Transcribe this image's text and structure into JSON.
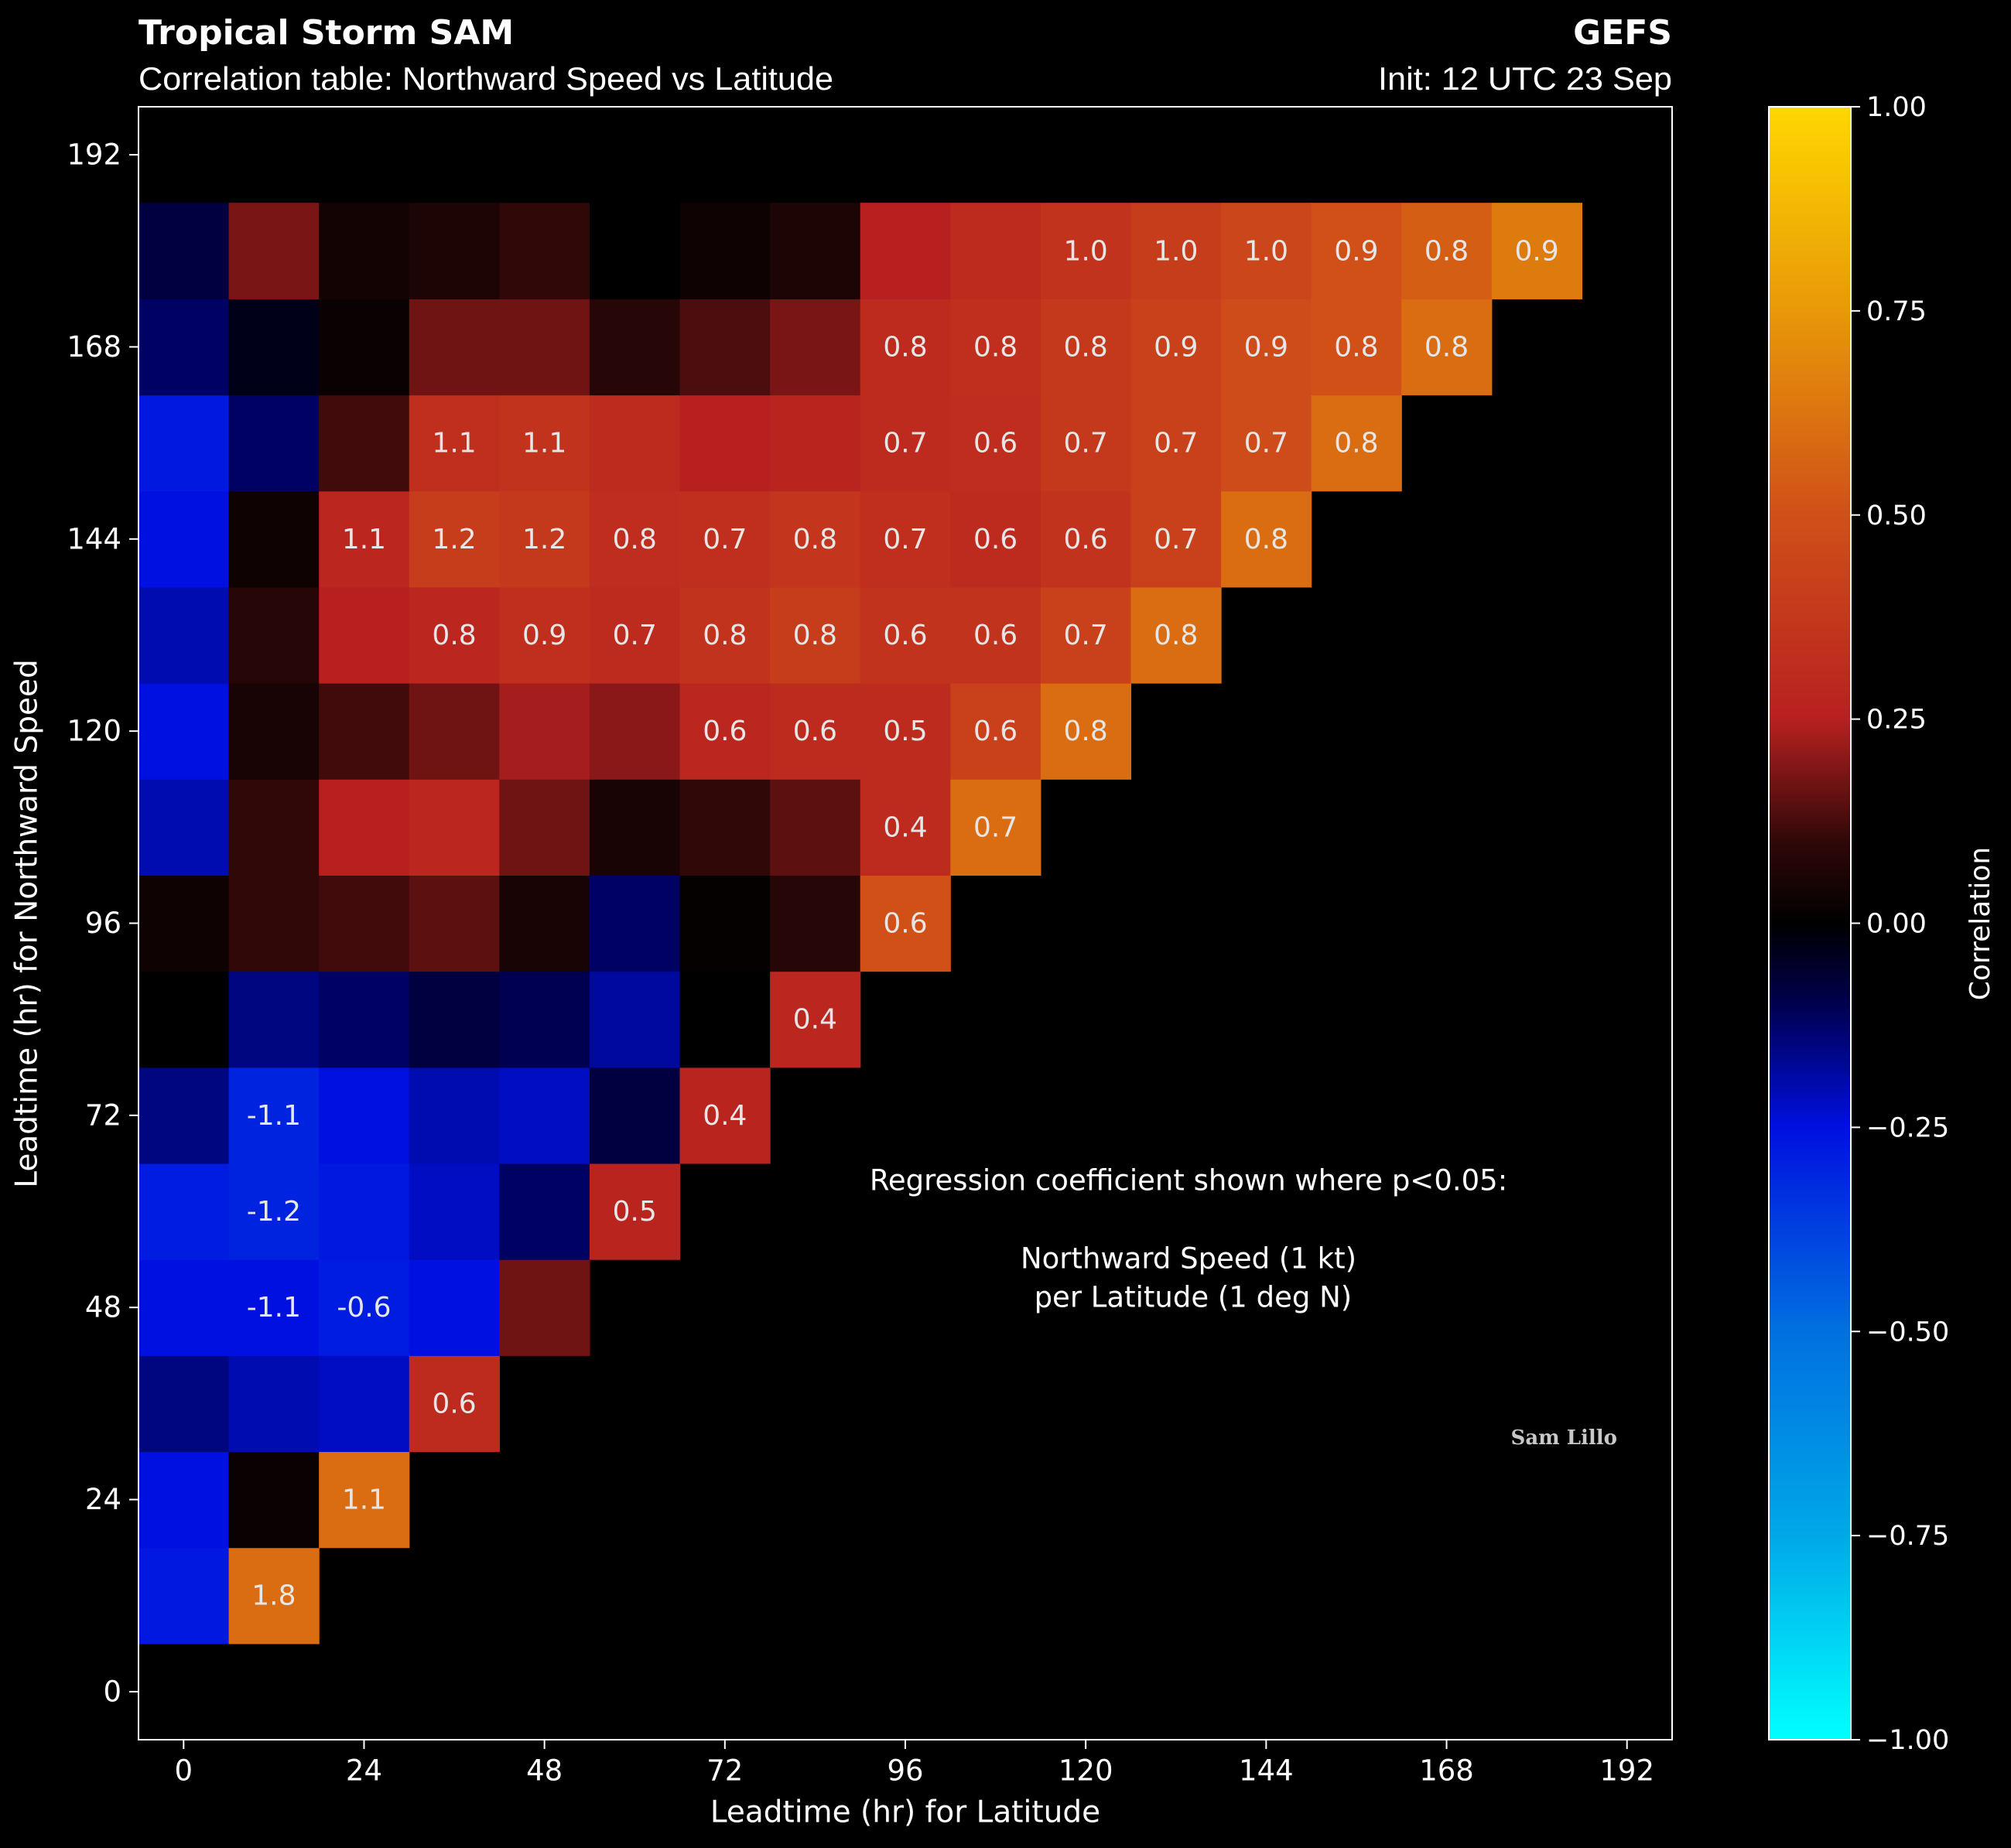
{
  "chart_data": {
    "type": "heatmap",
    "title": "Tropical Storm SAM",
    "subtitle": "Correlation table: Northward Speed vs Latitude",
    "model": "GEFS",
    "init": "Init: 12 UTC 23 Sep",
    "xlabel": "Leadtime (hr) for Latitude",
    "ylabel": "Leadtime (hr) for Northward Speed",
    "colorbar_label": "Correlation",
    "annotation": [
      "Regression coefficient shown where p<0.05:",
      "Northward Speed (1 kt)",
      " per Latitude (1 deg N)"
    ],
    "credit": "Sam Lillo",
    "x": [
      0,
      12,
      24,
      36,
      48,
      60,
      72,
      84,
      96,
      108,
      120,
      132,
      144,
      156,
      168,
      180
    ],
    "y": [
      12,
      24,
      36,
      48,
      60,
      72,
      84,
      96,
      108,
      120,
      132,
      144,
      156,
      168,
      180
    ],
    "z": [
      [
        -0.27,
        0.6,
        null,
        null,
        null,
        null,
        null,
        null,
        null,
        null,
        null,
        null,
        null,
        null,
        null,
        null
      ],
      [
        -0.25,
        0.02,
        0.6,
        null,
        null,
        null,
        null,
        null,
        null,
        null,
        null,
        null,
        null,
        null,
        null,
        null
      ],
      [
        -0.15,
        -0.2,
        -0.22,
        0.3,
        null,
        null,
        null,
        null,
        null,
        null,
        null,
        null,
        null,
        null,
        null,
        null
      ],
      [
        -0.25,
        -0.25,
        -0.28,
        -0.25,
        0.17,
        null,
        null,
        null,
        null,
        null,
        null,
        null,
        null,
        null,
        null,
        null
      ],
      [
        -0.28,
        -0.3,
        -0.27,
        -0.22,
        -0.12,
        0.27,
        null,
        null,
        null,
        null,
        null,
        null,
        null,
        null,
        null,
        null
      ],
      [
        -0.15,
        -0.3,
        -0.25,
        -0.2,
        -0.22,
        -0.08,
        0.27,
        null,
        null,
        null,
        null,
        null,
        null,
        null,
        null,
        null
      ],
      [
        0.0,
        -0.15,
        -0.12,
        -0.08,
        -0.1,
        -0.18,
        0.0,
        0.28,
        null,
        null,
        null,
        null,
        null,
        null,
        null,
        null
      ],
      [
        0.03,
        0.1,
        0.12,
        0.15,
        0.05,
        -0.12,
        0.01,
        0.08,
        0.5,
        null,
        null,
        null,
        null,
        null,
        null,
        null
      ],
      [
        -0.2,
        0.1,
        0.25,
        0.28,
        0.17,
        0.05,
        0.1,
        0.15,
        0.3,
        0.6,
        null,
        null,
        null,
        null,
        null,
        null
      ],
      [
        -0.25,
        0.05,
        0.12,
        0.17,
        0.23,
        0.2,
        0.28,
        0.3,
        0.3,
        0.42,
        0.6,
        null,
        null,
        null,
        null,
        null
      ],
      [
        -0.2,
        0.08,
        0.25,
        0.28,
        0.33,
        0.3,
        0.35,
        0.4,
        0.35,
        0.35,
        0.42,
        0.6,
        null,
        null,
        null,
        null
      ],
      [
        -0.25,
        0.03,
        0.28,
        0.4,
        0.38,
        0.32,
        0.33,
        0.36,
        0.33,
        0.3,
        0.35,
        0.42,
        0.6,
        null,
        null,
        null
      ],
      [
        -0.27,
        -0.12,
        0.12,
        0.33,
        0.35,
        0.3,
        0.25,
        0.27,
        0.3,
        0.32,
        0.38,
        0.42,
        0.48,
        0.6,
        null,
        null
      ],
      [
        -0.12,
        -0.03,
        0.02,
        0.17,
        0.17,
        0.08,
        0.13,
        0.18,
        0.3,
        0.33,
        0.38,
        0.42,
        0.48,
        0.5,
        0.6,
        null
      ],
      [
        -0.08,
        0.18,
        0.04,
        0.06,
        0.1,
        0.0,
        0.03,
        0.06,
        0.25,
        0.3,
        0.35,
        0.4,
        0.45,
        0.5,
        0.55,
        0.65
      ]
    ],
    "cell_labels": [
      [
        null,
        "1.8",
        null,
        null,
        null,
        null,
        null,
        null,
        null,
        null,
        null,
        null,
        null,
        null,
        null,
        null
      ],
      [
        null,
        null,
        "1.1",
        null,
        null,
        null,
        null,
        null,
        null,
        null,
        null,
        null,
        null,
        null,
        null,
        null
      ],
      [
        null,
        null,
        null,
        "0.6",
        null,
        null,
        null,
        null,
        null,
        null,
        null,
        null,
        null,
        null,
        null,
        null
      ],
      [
        null,
        "-1.1",
        "-0.6",
        null,
        null,
        null,
        null,
        null,
        null,
        null,
        null,
        null,
        null,
        null,
        null,
        null
      ],
      [
        null,
        "-1.2",
        null,
        null,
        null,
        "0.5",
        null,
        null,
        null,
        null,
        null,
        null,
        null,
        null,
        null,
        null
      ],
      [
        null,
        "-1.1",
        null,
        null,
        null,
        null,
        "0.4",
        null,
        null,
        null,
        null,
        null,
        null,
        null,
        null,
        null
      ],
      [
        null,
        null,
        null,
        null,
        null,
        null,
        null,
        "0.4",
        null,
        null,
        null,
        null,
        null,
        null,
        null,
        null
      ],
      [
        null,
        null,
        null,
        null,
        null,
        null,
        null,
        null,
        "0.6",
        null,
        null,
        null,
        null,
        null,
        null,
        null
      ],
      [
        null,
        null,
        null,
        null,
        null,
        null,
        null,
        null,
        "0.4",
        "0.7",
        null,
        null,
        null,
        null,
        null,
        null
      ],
      [
        null,
        null,
        null,
        null,
        null,
        null,
        "0.6",
        "0.6",
        "0.5",
        "0.6",
        "0.8",
        null,
        null,
        null,
        null,
        null
      ],
      [
        null,
        null,
        null,
        "0.8",
        "0.9",
        "0.7",
        "0.8",
        "0.8",
        "0.6",
        "0.6",
        "0.7",
        "0.8",
        null,
        null,
        null,
        null
      ],
      [
        null,
        null,
        "1.1",
        "1.2",
        "1.2",
        "0.8",
        "0.7",
        "0.8",
        "0.7",
        "0.6",
        "0.6",
        "0.7",
        "0.8",
        null,
        null,
        null
      ],
      [
        null,
        null,
        null,
        "1.1",
        "1.1",
        null,
        null,
        null,
        "0.7",
        "0.6",
        "0.7",
        "0.7",
        "0.7",
        "0.8",
        null,
        null
      ],
      [
        null,
        null,
        null,
        null,
        null,
        null,
        null,
        null,
        "0.8",
        "0.8",
        "0.8",
        "0.9",
        "0.9",
        "0.8",
        "0.8",
        null
      ],
      [
        null,
        null,
        null,
        null,
        null,
        null,
        null,
        null,
        null,
        null,
        "1.0",
        "1.0",
        "1.0",
        "0.9",
        "0.8",
        "0.9"
      ]
    ],
    "cell_size": 12,
    "xlim": [
      -6,
      198
    ],
    "ylim": [
      -6,
      198
    ],
    "xticks": [
      0,
      24,
      48,
      72,
      96,
      120,
      144,
      168,
      192
    ],
    "yticks": [
      0,
      24,
      48,
      72,
      96,
      120,
      144,
      168,
      192
    ],
    "clim": [
      -1,
      1
    ],
    "cticks": [
      {
        "value": -1,
        "label": "−1.00"
      },
      {
        "value": -0.75,
        "label": "−0.75"
      },
      {
        "value": -0.5,
        "label": "−0.50"
      },
      {
        "value": -0.25,
        "label": "−0.25"
      },
      {
        "value": 0,
        "label": "0.00"
      },
      {
        "value": 0.25,
        "label": "0.25"
      },
      {
        "value": 0.5,
        "label": "0.50"
      },
      {
        "value": 0.75,
        "label": "0.75"
      },
      {
        "value": 1,
        "label": "1.00"
      }
    ],
    "colorscale": [
      [
        -1,
        "#00ffff"
      ],
      [
        -0.75,
        "#00a8e8"
      ],
      [
        -0.5,
        "#0070e0"
      ],
      [
        -0.25,
        "#0010e0"
      ],
      [
        -0.1,
        "#000050"
      ],
      [
        0,
        "#000000"
      ],
      [
        0.1,
        "#300808"
      ],
      [
        0.25,
        "#b82020"
      ],
      [
        0.5,
        "#d05018"
      ],
      [
        0.75,
        "#e89808"
      ],
      [
        1,
        "#ffd700"
      ]
    ]
  }
}
